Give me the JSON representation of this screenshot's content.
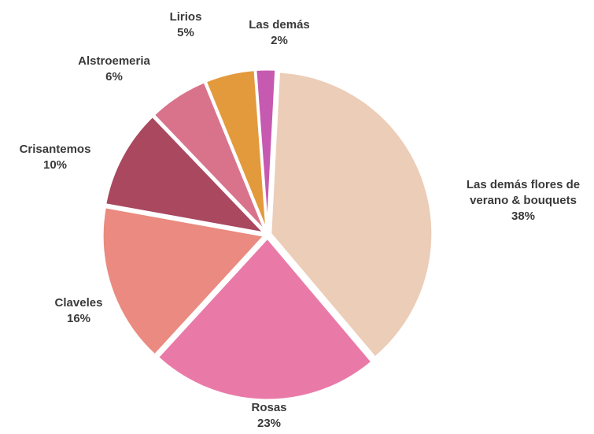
{
  "chart_data": {
    "type": "pie",
    "categories": [
      "Las demás flores de verano & bouquets",
      "Rosas",
      "Claveles",
      "Crisantemos",
      "Alstroemeria",
      "Lirios",
      "Las demás"
    ],
    "values": [
      38,
      23,
      16,
      10,
      6,
      5,
      2
    ],
    "value_labels": [
      "38%",
      "23%",
      "16%",
      "10%",
      "6%",
      "5%",
      "2%"
    ],
    "colors": [
      "#eccdb8",
      "#e97aa8",
      "#ea8a80",
      "#a9485f",
      "#d9738c",
      "#e39a3c",
      "#c65ab0"
    ]
  }
}
